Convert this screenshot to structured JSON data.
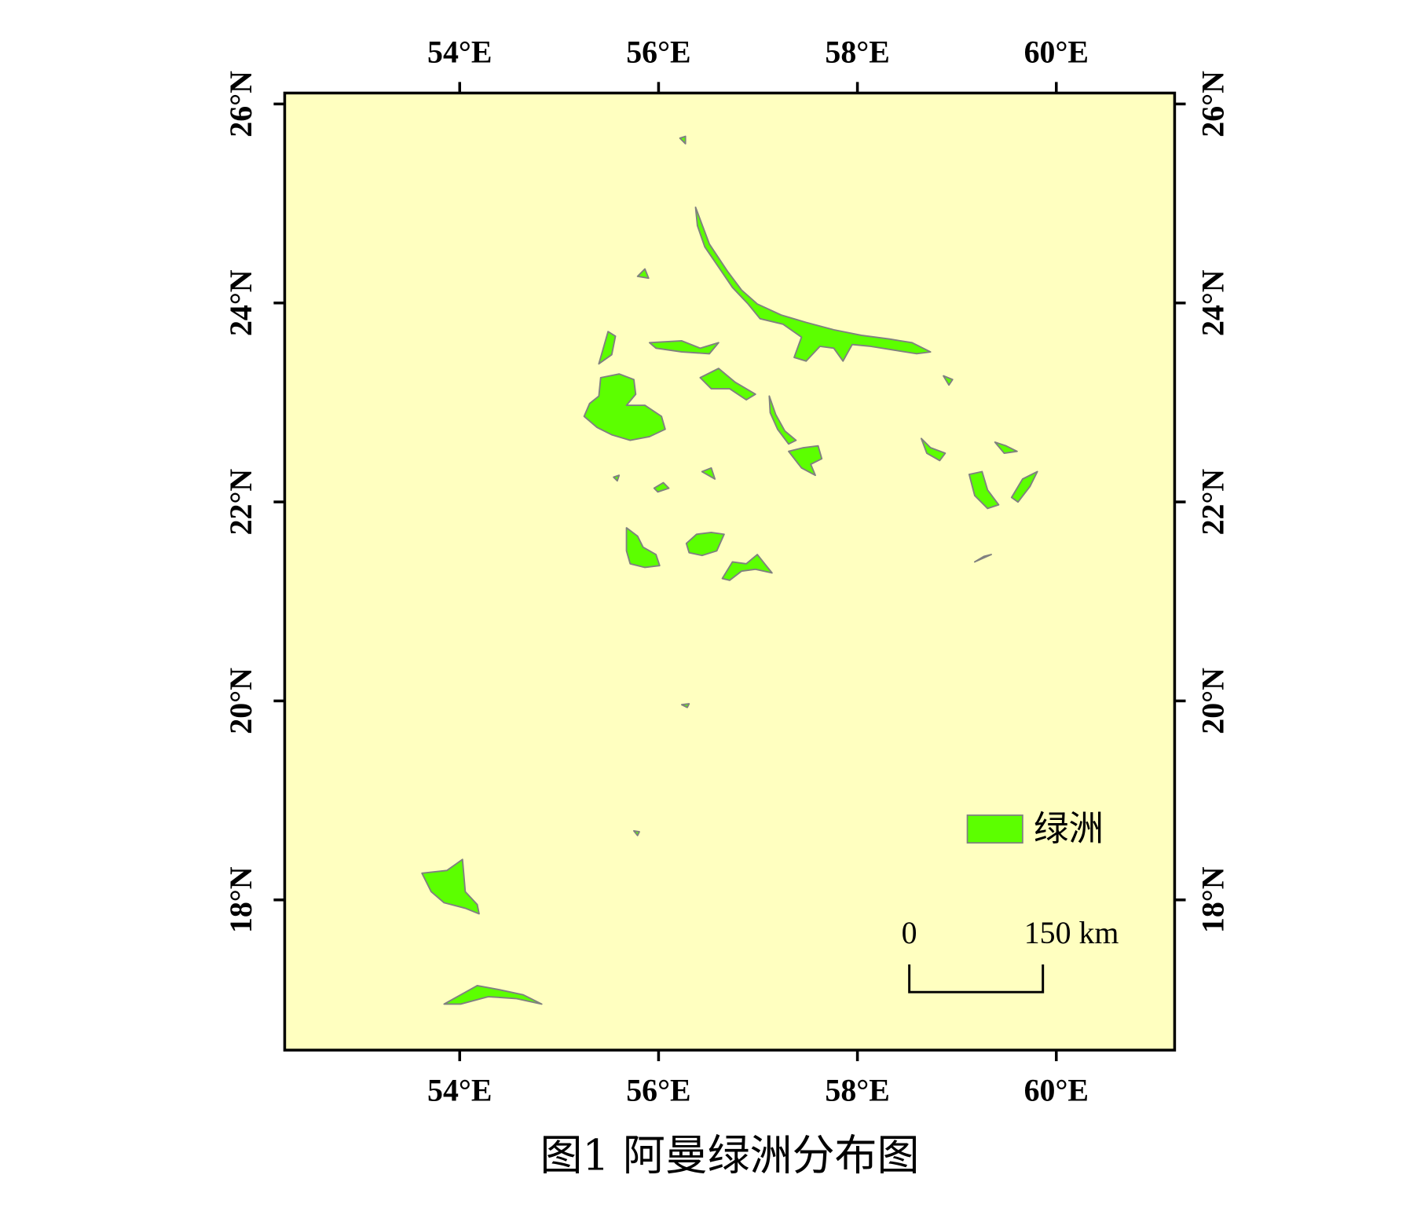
{
  "map": {
    "title": "图1 阿曼绿洲分布图",
    "lonlim": [
      52.24,
      61.19
    ],
    "latlim": [
      16.49,
      26.11
    ],
    "lonticks": [
      {
        "value": 54,
        "label": "54°E"
      },
      {
        "value": 56,
        "label": "56°E"
      },
      {
        "value": 58,
        "label": "58°E"
      },
      {
        "value": 60,
        "label": "60°E"
      }
    ],
    "latticks": [
      {
        "value": 18,
        "label": "18°N"
      },
      {
        "value": 20,
        "label": "20°N"
      },
      {
        "value": 22,
        "label": "22°N"
      },
      {
        "value": 24,
        "label": "24°N"
      },
      {
        "value": 26,
        "label": "26°N"
      }
    ],
    "legend": {
      "label": "绿洲",
      "color": "#5cff00"
    },
    "scale_bar": {
      "labels": [
        "0",
        "150 km"
      ]
    },
    "background": "#ffffc0"
  }
}
